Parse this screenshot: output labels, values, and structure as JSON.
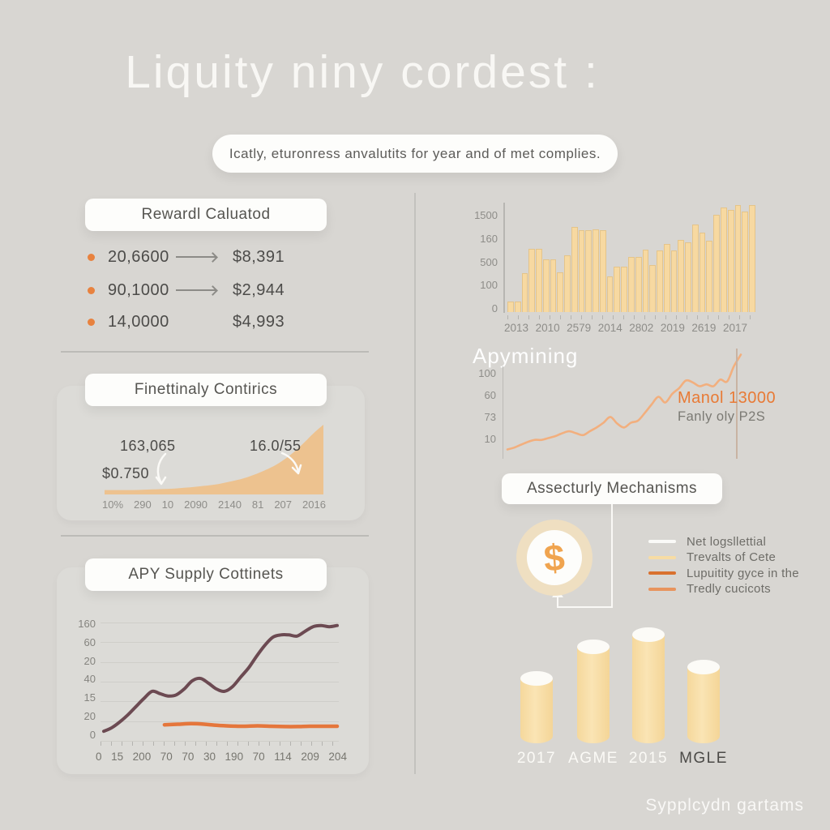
{
  "page": {
    "title": "Liquity niny cordest :",
    "subtitle": "Icatly, eturonress anvalutits for year and of met complies.",
    "footer": "Sypplcydn gartams"
  },
  "colors": {
    "background": "#D8D6D2",
    "panel": "#DCDBD7",
    "pill": "#FDFDFB",
    "accent_orange": "#E8823F",
    "bar_fill": "#F7D9A1",
    "area_fill": "#EDC28F",
    "line_maroon": "#6C4A52",
    "line_orange": "#E5763B",
    "mining_line": "#F2AF7E",
    "coin_ring": "#EFDFC1",
    "dollar_sign": "#F0A44F"
  },
  "reward_calc": {
    "heading": "Rewardl Caluatod",
    "rows": [
      {
        "amount": "20,6600",
        "value": "$8,391"
      },
      {
        "amount": "90,1000",
        "value": "$2,944"
      },
      {
        "amount": "14,0000",
        "value": "$4,993"
      }
    ]
  },
  "security": {
    "heading": "Assecturly Mechanisms",
    "coin_symbol": "$",
    "legend": [
      {
        "label": "Net logsllettial",
        "color": "#FAFAF8"
      },
      {
        "label": "Trevalts of Cete",
        "color": "#F7DCA4"
      },
      {
        "label": "Lupuitity gyce in the",
        "color": "#D9712F"
      },
      {
        "label": "Tredly cucicots",
        "color": "#E8945E"
      }
    ]
  },
  "chart_data": [
    {
      "id": "volume-bars",
      "type": "bar",
      "bar_color": "#F7D9A1",
      "yticks": [
        "1500",
        "160",
        "500",
        "100",
        "0"
      ],
      "xticks": [
        "2013",
        "2010",
        "2579",
        "2014",
        "2802",
        "2019",
        "2619",
        "2017"
      ],
      "values": [
        10,
        10,
        36,
        59,
        59,
        49,
        49,
        37,
        53,
        79,
        76,
        76,
        77,
        76,
        33,
        42,
        42,
        51,
        51,
        58,
        44,
        57,
        63,
        57,
        67,
        65,
        81,
        74,
        66,
        90,
        97,
        95,
        99,
        93,
        99
      ],
      "ylim": [
        0,
        100
      ],
      "grid": false
    },
    {
      "id": "apy-mining",
      "type": "line",
      "title": "Apymining",
      "line_color": "#F2AF7E",
      "yticks": [
        "100",
        "60",
        "73",
        "10"
      ],
      "values": [
        8,
        10,
        13,
        16,
        18,
        18,
        20,
        22,
        25,
        27,
        25,
        23,
        27,
        31,
        36,
        42,
        35,
        31,
        36,
        38,
        46,
        55,
        63,
        57,
        66,
        72,
        80,
        78,
        74,
        76,
        74,
        81,
        79,
        95,
        107
      ],
      "ylim": [
        0,
        110
      ],
      "annotation_value": "Manol 13000",
      "annotation_caption": "Fanly oly P2S"
    },
    {
      "id": "fin-metrics",
      "type": "area",
      "heading": "Finettinaly Contirics",
      "area_color": "#EDC28F",
      "xticks": [
        "10%",
        "290",
        "10",
        "2090",
        "2140",
        "81",
        "207",
        "2016"
      ],
      "values": [
        4,
        4,
        4,
        4,
        4.5,
        5,
        5.5,
        6,
        7,
        8,
        9.5,
        11,
        13,
        16,
        19,
        23,
        28,
        34,
        41,
        50,
        61,
        74,
        88,
        100
      ],
      "ylim": [
        0,
        100
      ],
      "annotations": [
        "163,065",
        "$0.750",
        "16.0/55"
      ]
    },
    {
      "id": "apy-supply",
      "type": "line",
      "heading": "APY Supply Cottinets",
      "yticks": [
        "160",
        "60",
        "20",
        "40",
        "15",
        "20",
        "0"
      ],
      "xticks": [
        "0",
        "15",
        "200",
        "70",
        "70",
        "30",
        "190",
        "70",
        "114",
        "209",
        "204"
      ],
      "ylim": [
        0,
        100
      ],
      "grid": true,
      "series": [
        {
          "name": "supply-curve",
          "color": "#6C4A52",
          "values": [
            4,
            7,
            12,
            18,
            25,
            32,
            38,
            36,
            34,
            35,
            40,
            47,
            49,
            45,
            40,
            38,
            42,
            50,
            58,
            68,
            77,
            84,
            86,
            86,
            85,
            89,
            93,
            94,
            93,
            94
          ]
        },
        {
          "name": "baseline-flat",
          "color": "#E5763B",
          "x_start_frac": 0.26,
          "values": [
            9.5,
            10,
            10.5,
            10,
            9,
            8.5,
            8.3,
            8.6,
            8.3,
            8,
            8,
            8.3,
            8.3,
            8.3
          ]
        }
      ]
    },
    {
      "id": "reserve-cylinders",
      "type": "bar",
      "bar_color": "#F8DFA6",
      "categories": [
        "2017",
        "AGME",
        "2015",
        "MGLE"
      ],
      "values": [
        80,
        119,
        134,
        94
      ],
      "label_colors": [
        "#FBFAF6",
        "#FBFAF6",
        "#FBFAF6",
        "#4B4A47"
      ]
    }
  ]
}
